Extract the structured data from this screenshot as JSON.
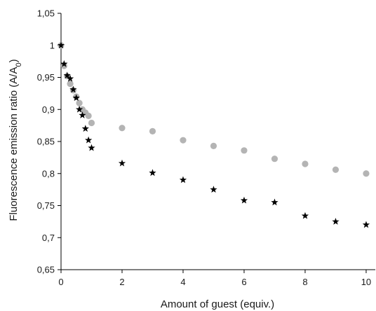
{
  "chart_data": {
    "type": "scatter",
    "title": "",
    "xlabel": "Amount of guest (equiv.)",
    "ylabel": {
      "main": "Fluorescence emission ratio (A/A",
      "subscript": "0",
      "tail": ")"
    },
    "xlim": [
      0,
      10.3
    ],
    "ylim": [
      0.65,
      1.05
    ],
    "xticks": [
      {
        "value": 0,
        "label": "0"
      },
      {
        "value": 2,
        "label": "2"
      },
      {
        "value": 4,
        "label": "4"
      },
      {
        "value": 6,
        "label": "6"
      },
      {
        "value": 8,
        "label": "8"
      },
      {
        "value": 10,
        "label": "10"
      }
    ],
    "yticks": [
      {
        "value": 0.65,
        "label": "0,65"
      },
      {
        "value": 0.7,
        "label": "0,7"
      },
      {
        "value": 0.75,
        "label": "0,75"
      },
      {
        "value": 0.8,
        "label": "0,8"
      },
      {
        "value": 0.85,
        "label": "0,85"
      },
      {
        "value": 0.9,
        "label": "0,9"
      },
      {
        "value": 0.95,
        "label": "0,95"
      },
      {
        "value": 1,
        "label": "1"
      },
      {
        "value": 1.05,
        "label": "1,05"
      }
    ],
    "grid": false,
    "legend": "none",
    "series": [
      {
        "marker": "circle",
        "color": "#b4b4b4",
        "points": [
          {
            "x": 0.0,
            "y": 1.0
          },
          {
            "x": 0.1,
            "y": 0.968
          },
          {
            "x": 0.2,
            "y": 0.952
          },
          {
            "x": 0.3,
            "y": 0.94
          },
          {
            "x": 0.4,
            "y": 0.93
          },
          {
            "x": 0.5,
            "y": 0.92
          },
          {
            "x": 0.6,
            "y": 0.91
          },
          {
            "x": 0.7,
            "y": 0.9
          },
          {
            "x": 0.8,
            "y": 0.895
          },
          {
            "x": 0.9,
            "y": 0.89
          },
          {
            "x": 1.0,
            "y": 0.879
          },
          {
            "x": 2.0,
            "y": 0.871
          },
          {
            "x": 3.0,
            "y": 0.866
          },
          {
            "x": 4.0,
            "y": 0.852
          },
          {
            "x": 5.0,
            "y": 0.843
          },
          {
            "x": 6.0,
            "y": 0.836
          },
          {
            "x": 7.0,
            "y": 0.823
          },
          {
            "x": 8.0,
            "y": 0.815
          },
          {
            "x": 9.0,
            "y": 0.806
          },
          {
            "x": 10.0,
            "y": 0.8
          }
        ]
      },
      {
        "marker": "star",
        "color": "#000000",
        "points": [
          {
            "x": 0.0,
            "y": 1.0
          },
          {
            "x": 0.1,
            "y": 0.971
          },
          {
            "x": 0.2,
            "y": 0.953
          },
          {
            "x": 0.3,
            "y": 0.948
          },
          {
            "x": 0.4,
            "y": 0.931
          },
          {
            "x": 0.5,
            "y": 0.918
          },
          {
            "x": 0.6,
            "y": 0.9
          },
          {
            "x": 0.7,
            "y": 0.891
          },
          {
            "x": 0.8,
            "y": 0.87
          },
          {
            "x": 0.9,
            "y": 0.852
          },
          {
            "x": 1.0,
            "y": 0.84
          },
          {
            "x": 2.0,
            "y": 0.816
          },
          {
            "x": 3.0,
            "y": 0.801
          },
          {
            "x": 4.0,
            "y": 0.79
          },
          {
            "x": 5.0,
            "y": 0.775
          },
          {
            "x": 6.0,
            "y": 0.758
          },
          {
            "x": 7.0,
            "y": 0.755
          },
          {
            "x": 8.0,
            "y": 0.734
          },
          {
            "x": 9.0,
            "y": 0.725
          },
          {
            "x": 10.0,
            "y": 0.72
          }
        ]
      }
    ]
  }
}
